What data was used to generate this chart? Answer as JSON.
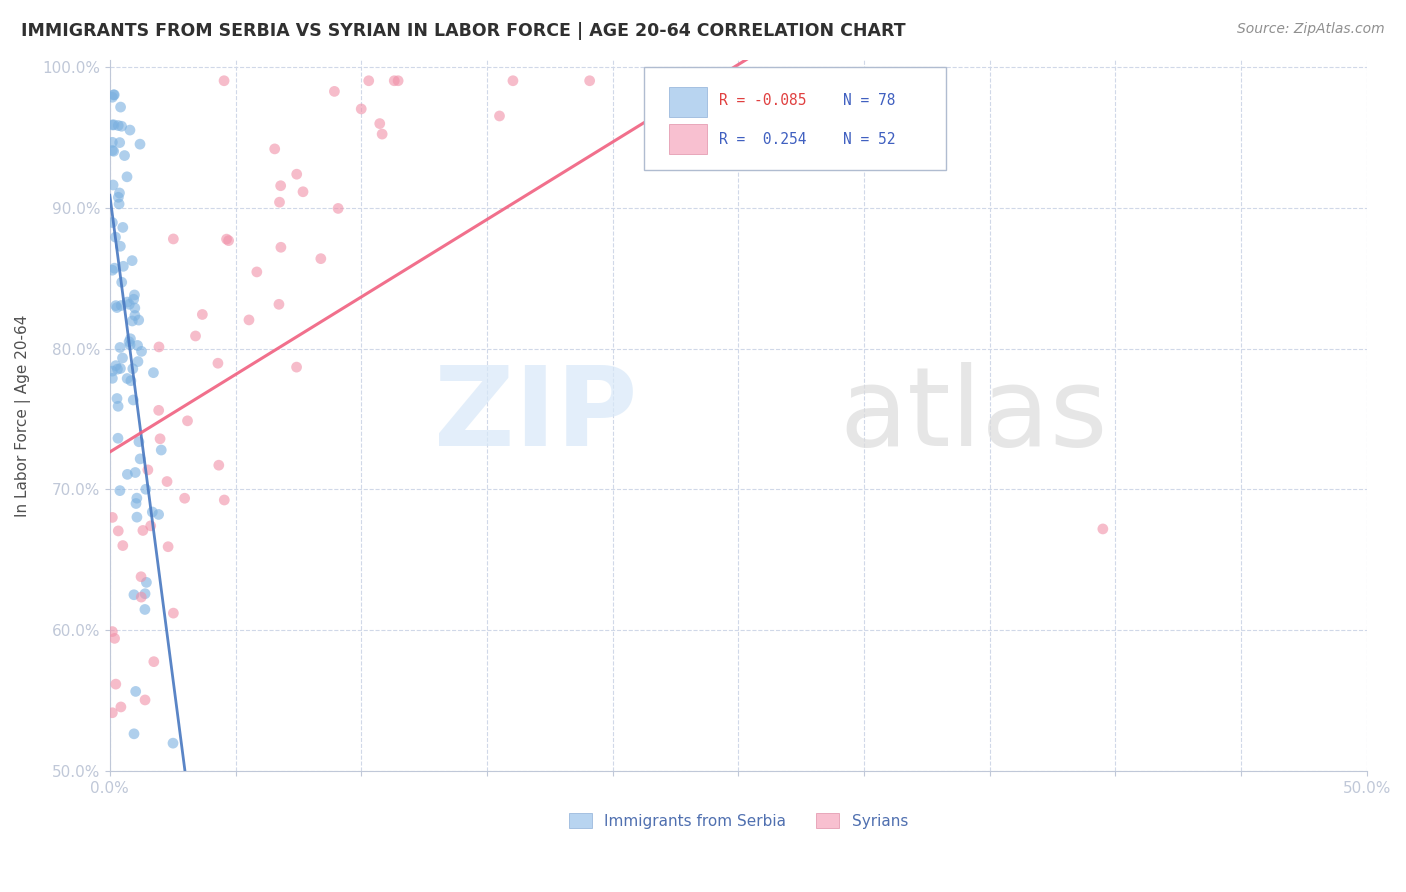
{
  "title": "IMMIGRANTS FROM SERBIA VS SYRIAN IN LABOR FORCE | AGE 20-64 CORRELATION CHART",
  "source": "Source: ZipAtlas.com",
  "ylabel_label": "In Labor Force | Age 20-64",
  "serbia_color": "#7ab0e0",
  "syria_color": "#f090a8",
  "serbia_trend_color": "#4878c0",
  "syria_trend_color": "#f06080",
  "serbia_trend_dash_color": "#a8c8f0",
  "background_color": "#ffffff",
  "grid_color": "#d0d8e8",
  "xlim": [
    0.0,
    0.5
  ],
  "ylim": [
    0.5,
    1.005
  ],
  "yticks": [
    0.5,
    0.6,
    0.7,
    0.8,
    0.9,
    1.0
  ],
  "ytick_labels": [
    "50.0%",
    "60.0%",
    "70.0%",
    "80.0%",
    "90.0%",
    "100.0%"
  ],
  "xticks": [
    0.0,
    0.05,
    0.1,
    0.15,
    0.2,
    0.25,
    0.3,
    0.35,
    0.4,
    0.45,
    0.5
  ],
  "xtick_labels": [
    "0.0%",
    "",
    "",
    "",
    "",
    "",
    "",
    "",
    "",
    "",
    "50.0%"
  ],
  "serbia_N": 78,
  "syria_N": 52,
  "serbia_R": -0.085,
  "syria_R": 0.254,
  "legend_blue_text1": "R = -0.085",
  "legend_blue_text2": "N = 78",
  "legend_pink_text1": "R =  0.254",
  "legend_pink_text2": "N = 52",
  "legend_title_blue": "Immigrants from Serbia",
  "legend_title_pink": "Syrians",
  "watermark_zip": "ZIP",
  "watermark_atlas": "atlas"
}
